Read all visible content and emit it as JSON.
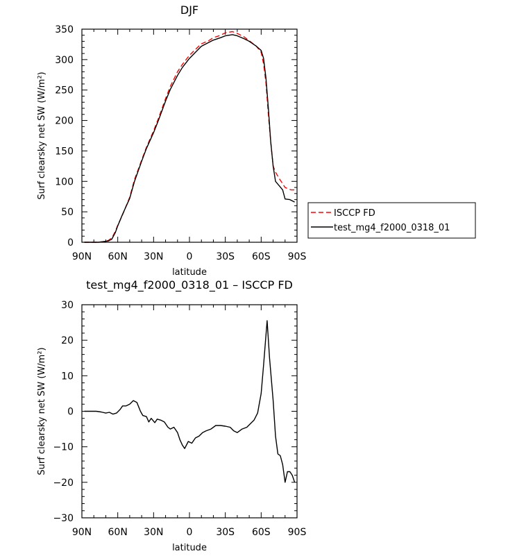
{
  "chart_data": [
    {
      "type": "line",
      "title": "DJF",
      "xlabel": "latitude",
      "ylabel": "Surf clearsky net SW (W/m²)",
      "xlim": [
        90,
        -90
      ],
      "ylim": [
        0,
        350
      ],
      "x_ticks": [
        90,
        60,
        30,
        0,
        -30,
        -60,
        -90
      ],
      "x_tick_labels": [
        "90N",
        "60N",
        "30N",
        "0",
        "30S",
        "60S",
        "90S"
      ],
      "y_ticks": [
        0,
        50,
        100,
        150,
        200,
        250,
        300,
        350
      ],
      "y_tick_labels": [
        "0",
        "50",
        "100",
        "150",
        "200",
        "250",
        "300",
        "350"
      ],
      "legend": {
        "placement": "right",
        "entries": [
          "ISCCP FD",
          "test_mg4_f2000_0318_01"
        ]
      },
      "series": [
        {
          "name": "ISCCP FD",
          "color": "#ff0000",
          "dash": "dashed",
          "x": [
            88,
            84,
            80,
            76,
            72,
            68,
            65,
            62,
            60,
            56,
            50,
            46,
            40,
            36,
            30,
            26,
            20,
            16,
            10,
            6,
            0,
            -4,
            -10,
            -16,
            -20,
            -26,
            -30,
            -36,
            -40,
            -46,
            -50,
            -56,
            -60,
            -62,
            -64,
            -66,
            -68,
            -70,
            -72,
            -75,
            -80,
            -85,
            -88
          ],
          "y": [
            0,
            0,
            0,
            0,
            1,
            3,
            7,
            18,
            28,
            45,
            74,
            103,
            135,
            156,
            183,
            203,
            236,
            256,
            280,
            292,
            307,
            315,
            326,
            331,
            336,
            340,
            344,
            346,
            343,
            337,
            331,
            322,
            312,
            293,
            262,
            210,
            165,
            125,
            115,
            105,
            90,
            86,
            86
          ]
        },
        {
          "name": "test_mg4_f2000_0318_01",
          "color": "#000000",
          "dash": "solid",
          "x": [
            88,
            84,
            80,
            76,
            72,
            68,
            65,
            62,
            60,
            56,
            50,
            46,
            40,
            36,
            30,
            26,
            20,
            16,
            10,
            6,
            0,
            -4,
            -10,
            -16,
            -20,
            -26,
            -30,
            -36,
            -40,
            -46,
            -50,
            -56,
            -60,
            -62,
            -64,
            -66,
            -68,
            -70,
            -72,
            -75,
            -78,
            -80,
            -84,
            -88
          ],
          "y": [
            0,
            0,
            0,
            0,
            1,
            2,
            5,
            16,
            27,
            46,
            72,
            100,
            133,
            154,
            180,
            200,
            232,
            251,
            274,
            287,
            302,
            310,
            322,
            328,
            332,
            336,
            339,
            341,
            339,
            334,
            330,
            322,
            315,
            302,
            270,
            220,
            165,
            125,
            100,
            93,
            86,
            71,
            70,
            66
          ]
        }
      ]
    },
    {
      "type": "line",
      "title": "test_mg4_f2000_0318_01 – ISCCP FD",
      "xlabel": "latitude",
      "ylabel": "Surf clearsky net SW (W/m²)",
      "xlim": [
        90,
        -90
      ],
      "ylim": [
        -30,
        30
      ],
      "x_ticks": [
        90,
        60,
        30,
        0,
        -30,
        -60,
        -90
      ],
      "x_tick_labels": [
        "90N",
        "60N",
        "30N",
        "0",
        "30S",
        "60S",
        "90S"
      ],
      "y_ticks": [
        -30,
        -20,
        -10,
        0,
        10,
        20,
        30
      ],
      "y_tick_labels": [
        "−30",
        "−20",
        "−10",
        "0",
        "10",
        "20",
        "30"
      ],
      "series": [
        {
          "color": "#000000",
          "dash": "solid",
          "x": [
            88,
            82,
            78,
            74,
            70,
            67,
            64,
            61,
            58,
            56,
            53,
            50,
            47,
            44,
            41,
            39,
            36,
            34,
            32,
            29,
            27,
            24,
            21,
            18,
            16,
            13,
            10,
            8,
            6,
            4,
            1,
            -2,
            -5,
            -8,
            -11,
            -14,
            -18,
            -22,
            -26,
            -30,
            -34,
            -37,
            -40,
            -44,
            -48,
            -51,
            -54,
            -57,
            -60,
            -62,
            -65,
            -67,
            -70,
            -72,
            -74,
            -76,
            -78,
            -80,
            -82,
            -84,
            -86,
            -88
          ],
          "y": [
            0,
            0,
            0,
            -0.2,
            -0.5,
            -0.3,
            -0.8,
            -0.5,
            0.5,
            1.5,
            1.5,
            2,
            3,
            2.5,
            0,
            -1.2,
            -1.5,
            -3,
            -2,
            -3.2,
            -2.2,
            -2.5,
            -3,
            -4.5,
            -5,
            -4.5,
            -6,
            -8,
            -9.5,
            -10.5,
            -8.5,
            -9,
            -7.5,
            -7,
            -6,
            -5.5,
            -5,
            -4,
            -4,
            -4.2,
            -4.5,
            -5.5,
            -6,
            -5,
            -4.5,
            -3.5,
            -2.5,
            -0.5,
            5,
            13,
            25.5,
            15,
            3,
            -7,
            -12,
            -12.5,
            -15,
            -20,
            -17,
            -17,
            -18,
            -20
          ]
        }
      ]
    }
  ]
}
